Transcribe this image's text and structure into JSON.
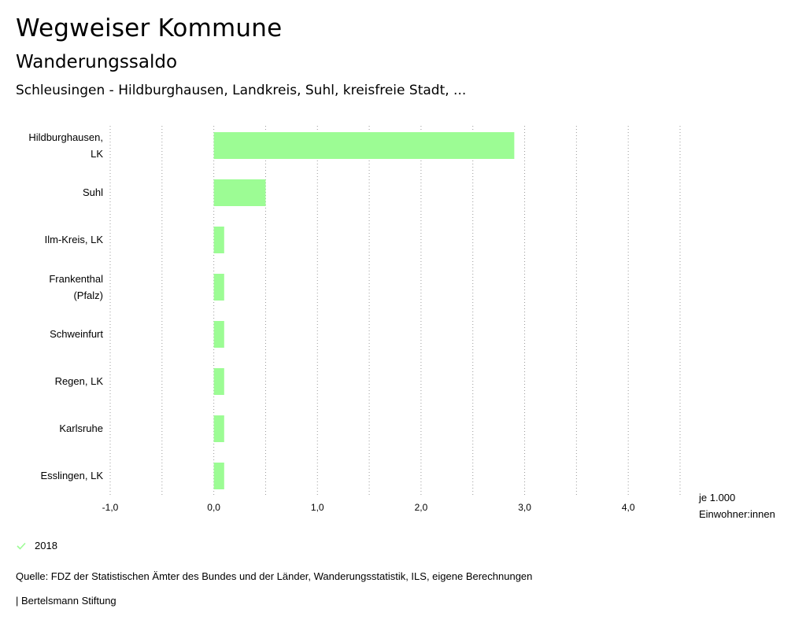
{
  "header": {
    "title": "Wegweiser Kommune",
    "subtitle": "Wanderungssaldo",
    "region": "Schleusingen - Hildburghausen, Landkreis, Suhl, kreisfreie Stadt, ..."
  },
  "chart_data": {
    "type": "bar",
    "orientation": "horizontal",
    "categories": [
      [
        "Hildburghausen,",
        "LK"
      ],
      [
        "Suhl"
      ],
      [
        "Ilm-Kreis, LK"
      ],
      [
        "Frankenthal",
        "(Pfalz)"
      ],
      [
        "Schweinfurt"
      ],
      [
        "Regen, LK"
      ],
      [
        "Karlsruhe"
      ],
      [
        "Esslingen, LK"
      ]
    ],
    "series": [
      {
        "name": "2018",
        "color": "#9cfc94",
        "values": [
          2.9,
          0.5,
          0.1,
          0.1,
          0.1,
          0.1,
          0.1,
          0.1
        ]
      }
    ],
    "xlim": [
      -1.0,
      4.5
    ],
    "x_ticks": [
      -1.0,
      0.0,
      1.0,
      2.0,
      3.0,
      4.0
    ],
    "x_tick_labels": [
      "-1,0",
      "0,0",
      "1,0",
      "2,0",
      "3,0",
      "4,0"
    ],
    "x_grid": [
      -1.0,
      -0.5,
      0.0,
      0.5,
      1.0,
      1.5,
      2.0,
      2.5,
      3.0,
      3.5,
      4.0,
      4.5
    ],
    "unit_label": [
      "je 1.000",
      "Einwohner:innen"
    ],
    "grid": true,
    "legend_position": "bottom-left"
  },
  "legend": {
    "label": "2018",
    "icon": "check-icon",
    "color": "#9cfc94"
  },
  "footer": {
    "source": "Quelle: FDZ der Statistischen Ämter des Bundes und der Länder, Wanderungsstatistik, ILS, eigene Berechnungen",
    "brand": "| Bertelsmann Stiftung"
  }
}
